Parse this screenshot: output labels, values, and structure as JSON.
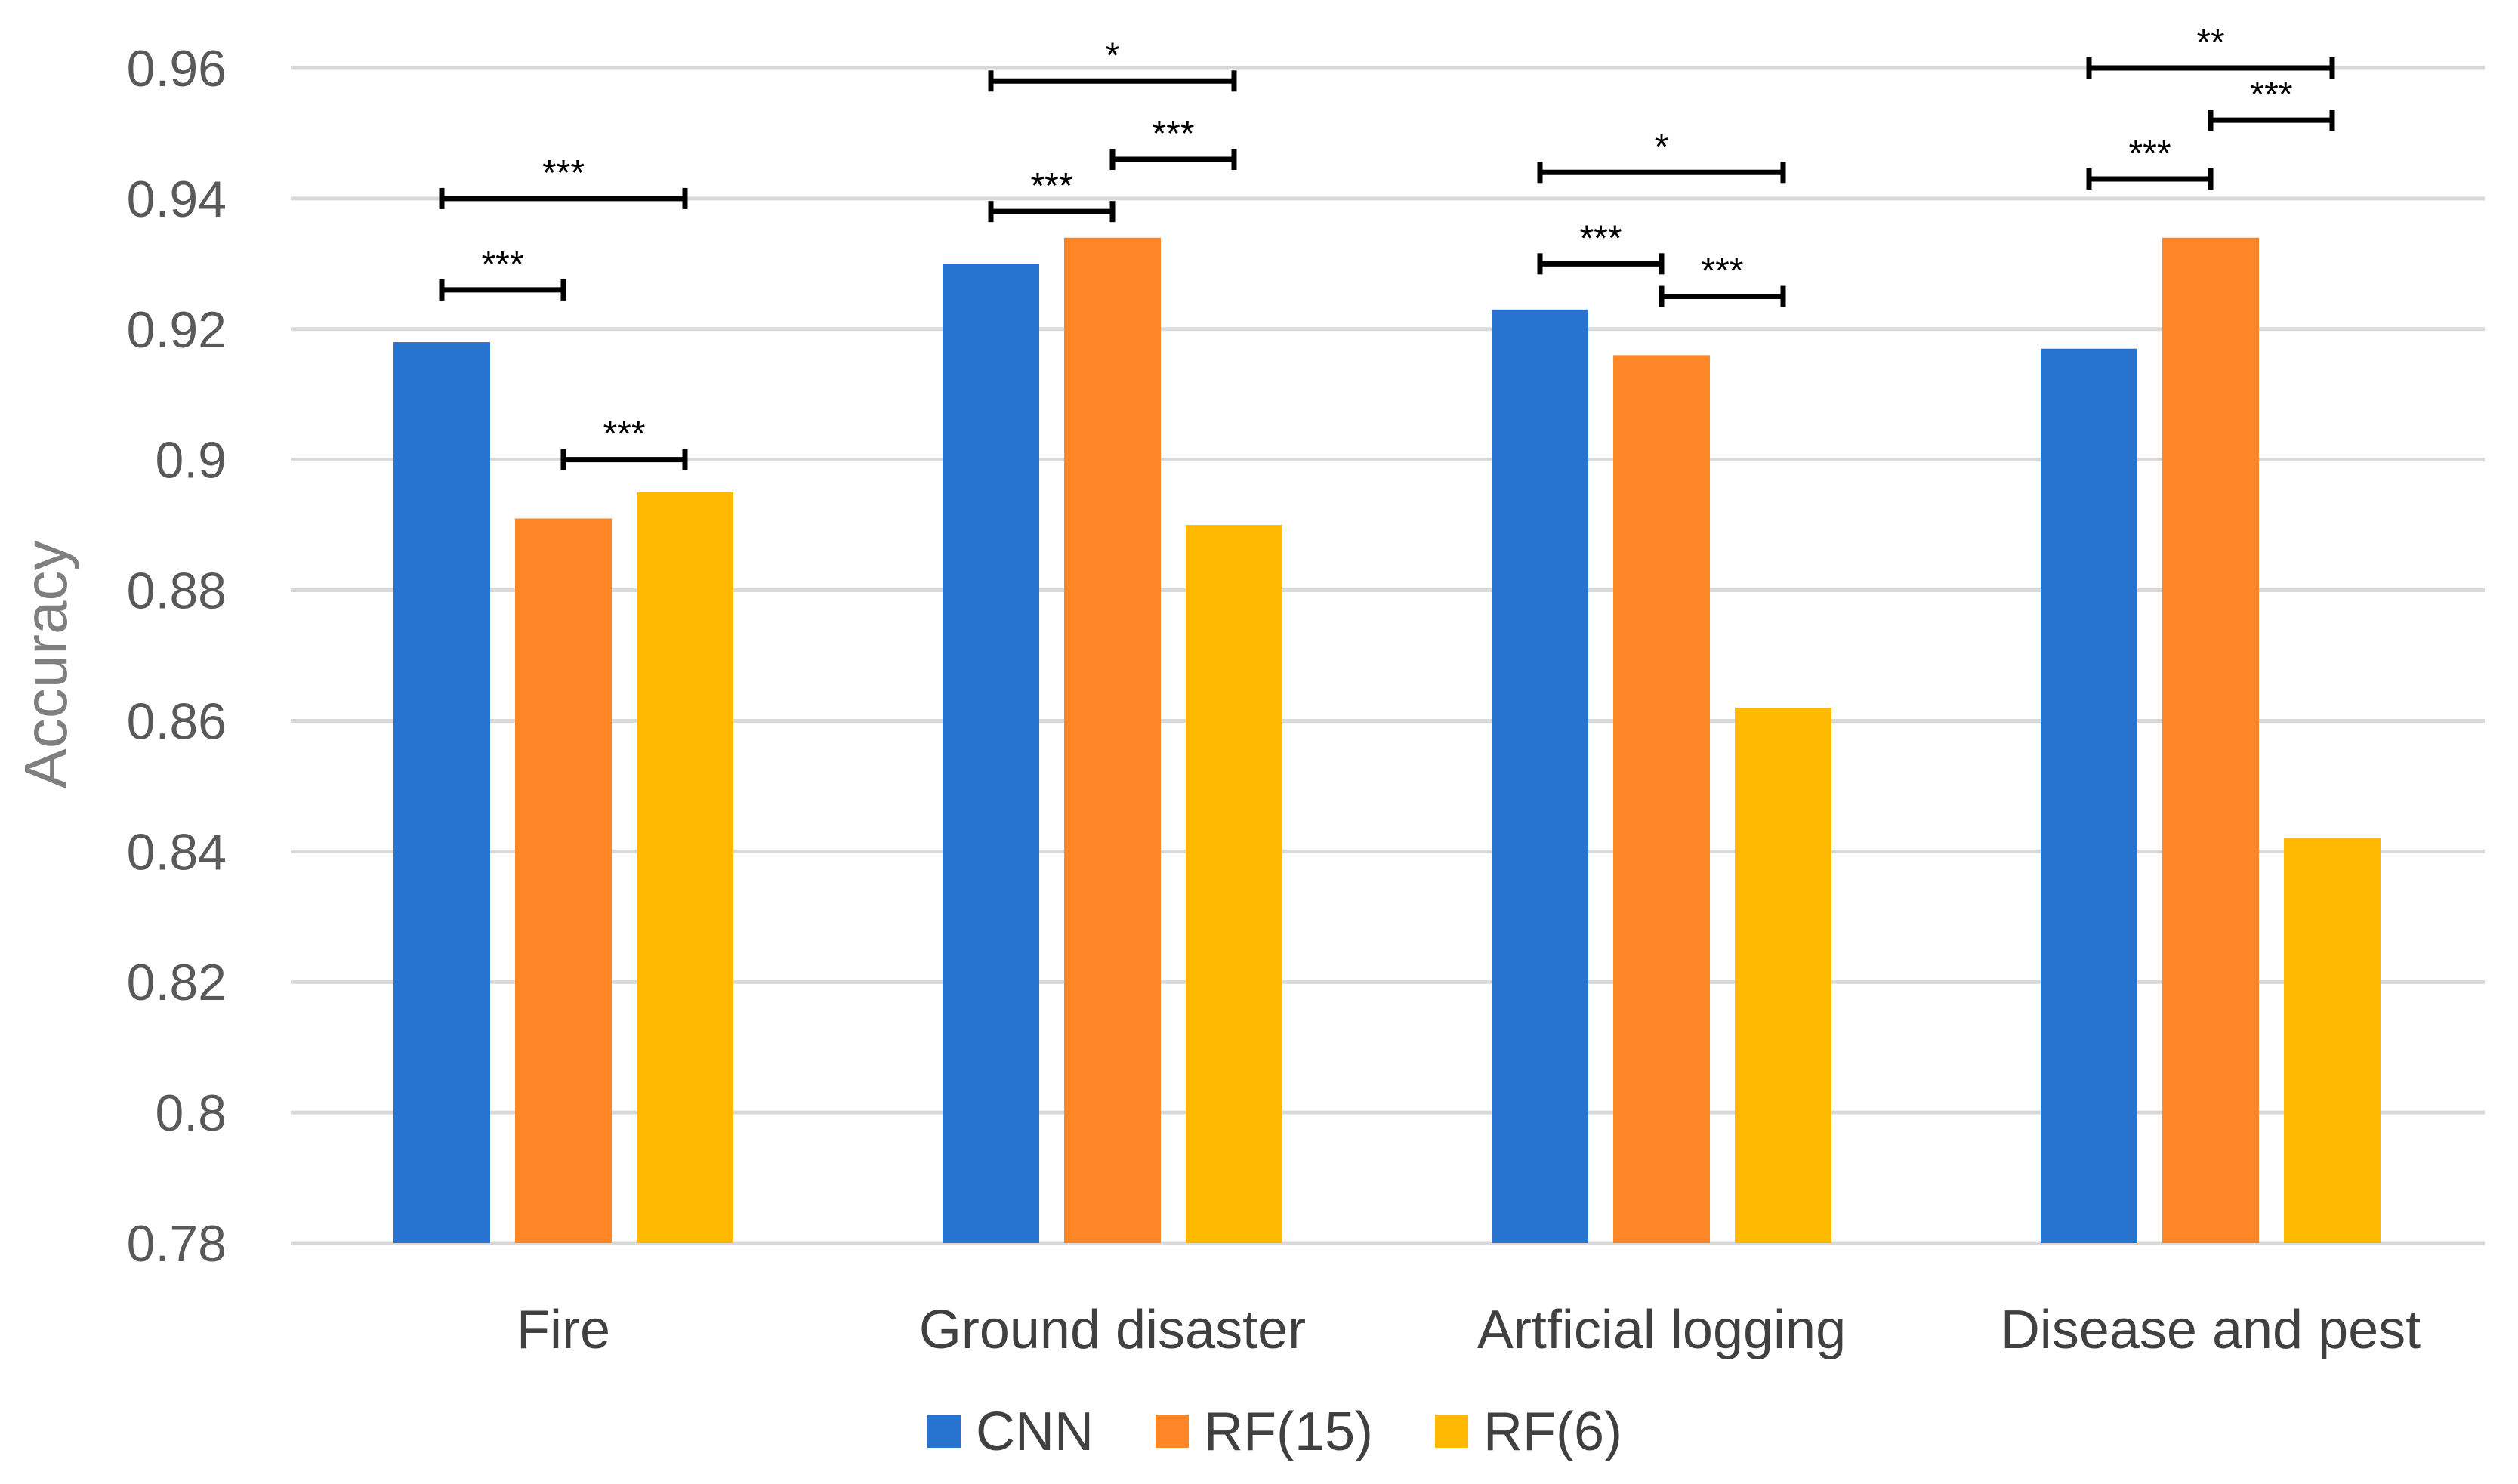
{
  "chart_data": {
    "type": "bar",
    "title": "",
    "xlabel": "",
    "ylabel": "Accuracy",
    "ylim": [
      0.78,
      0.96
    ],
    "yticks": [
      "0.78",
      "0.8",
      "0.82",
      "0.84",
      "0.86",
      "0.88",
      "0.9",
      "0.92",
      "0.94",
      "0.96"
    ],
    "grid": true,
    "legend_position": "bottom",
    "categories": [
      "Fire",
      "Ground disaster",
      "Artficial logging",
      "Disease and pest"
    ],
    "series": [
      {
        "name": "CNN",
        "color": "#2674cf",
        "values": [
          0.918,
          0.93,
          0.923,
          0.917
        ]
      },
      {
        "name": "RF(15)",
        "color": "#fd8627",
        "values": [
          0.891,
          0.934,
          0.916,
          0.934
        ]
      },
      {
        "name": "RF(6)",
        "color": "#ffb901",
        "values": [
          0.895,
          0.89,
          0.862,
          0.842
        ]
      }
    ],
    "significance": [
      {
        "category": 0,
        "from": 0,
        "to": 1,
        "level": 0.926,
        "label": "***"
      },
      {
        "category": 0,
        "from": 0,
        "to": 2,
        "level": 0.94,
        "label": "***"
      },
      {
        "category": 0,
        "from": 1,
        "to": 2,
        "level": 0.9,
        "label": "***"
      },
      {
        "category": 1,
        "from": 0,
        "to": 1,
        "level": 0.938,
        "label": "***"
      },
      {
        "category": 1,
        "from": 0,
        "to": 2,
        "level": 0.958,
        "label": "*"
      },
      {
        "category": 1,
        "from": 1,
        "to": 2,
        "level": 0.946,
        "label": "***"
      },
      {
        "category": 2,
        "from": 0,
        "to": 1,
        "level": 0.93,
        "label": "***"
      },
      {
        "category": 2,
        "from": 0,
        "to": 2,
        "level": 0.944,
        "label": "*"
      },
      {
        "category": 2,
        "from": 1,
        "to": 2,
        "level": 0.925,
        "label": "***"
      },
      {
        "category": 3,
        "from": 0,
        "to": 1,
        "level": 0.943,
        "label": "***"
      },
      {
        "category": 3,
        "from": 0,
        "to": 2,
        "level": 0.96,
        "label": "**"
      },
      {
        "category": 3,
        "from": 1,
        "to": 2,
        "level": 0.952,
        "label": "***"
      }
    ]
  }
}
